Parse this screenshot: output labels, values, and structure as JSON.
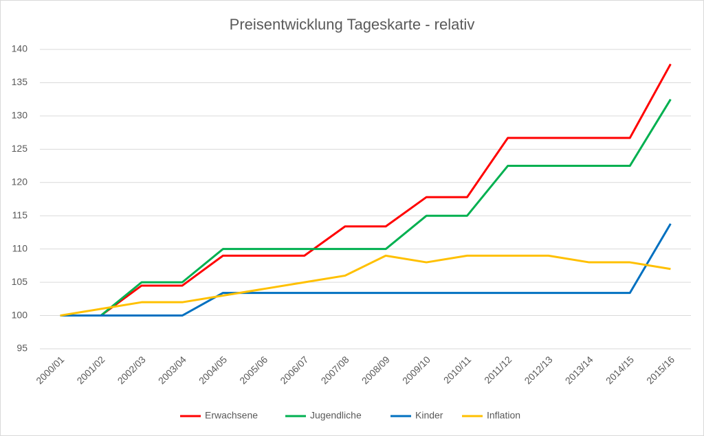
{
  "chart_data": {
    "type": "line",
    "title": "Preisentwicklung Tageskarte - relativ",
    "categories": [
      "2000/01",
      "2001/02",
      "2002/03",
      "2003/04",
      "2004/05",
      "2005/06",
      "2006/07",
      "2007/08",
      "2008/09",
      "2009/10",
      "2010/11",
      "2011/12",
      "2012/13",
      "2013/14",
      "2014/15",
      "2015/16"
    ],
    "series": [
      {
        "name": "Erwachsene",
        "color": "#ff0000",
        "values": [
          100,
          100,
          104.5,
          104.5,
          109,
          109,
          109,
          113.4,
          113.4,
          117.8,
          117.8,
          126.7,
          126.7,
          126.7,
          126.7,
          137.8
        ]
      },
      {
        "name": "Jugendliche",
        "color": "#00b050",
        "values": [
          100,
          100,
          105,
          105,
          110,
          110,
          110,
          110,
          110,
          115,
          115,
          122.5,
          122.5,
          122.5,
          122.5,
          132.5
        ]
      },
      {
        "name": "Kinder",
        "color": "#0070c0",
        "values": [
          100,
          100,
          100,
          100,
          103.4,
          103.4,
          103.4,
          103.4,
          103.4,
          103.4,
          103.4,
          103.4,
          103.4,
          103.4,
          103.4,
          113.8
        ]
      },
      {
        "name": "Inflation",
        "color": "#ffc000",
        "values": [
          100,
          101,
          102,
          102,
          103,
          104,
          105,
          106,
          109,
          108,
          109,
          109,
          109,
          108,
          108,
          107
        ]
      }
    ],
    "ylim": [
      95,
      140
    ],
    "yticks": [
      95,
      100,
      105,
      110,
      115,
      120,
      125,
      130,
      135,
      140
    ],
    "grid": true,
    "legend": "bottom"
  }
}
